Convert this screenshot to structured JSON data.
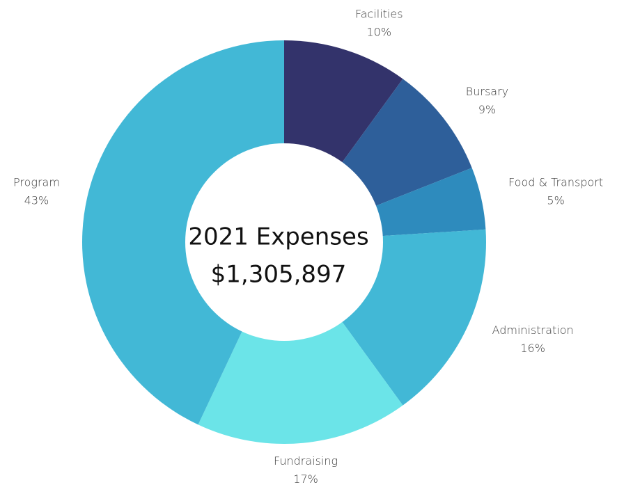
{
  "chart_data": {
    "type": "donut",
    "title": "2021 Expenses",
    "subtitle": "$1,305,897",
    "categories": [
      "Facilities",
      "Bursary",
      "Food & Transport",
      "Administration",
      "Fundraising",
      "Program"
    ],
    "values": [
      10,
      9,
      5,
      16,
      17,
      43
    ],
    "value_labels": [
      "10%",
      "9%",
      "5%",
      "16%",
      "17%",
      "43%"
    ],
    "colors": [
      "#33336b",
      "#2e5f9a",
      "#2e8bbd",
      "#42b8d6",
      "#6be4e8",
      "#42b8d6"
    ]
  }
}
